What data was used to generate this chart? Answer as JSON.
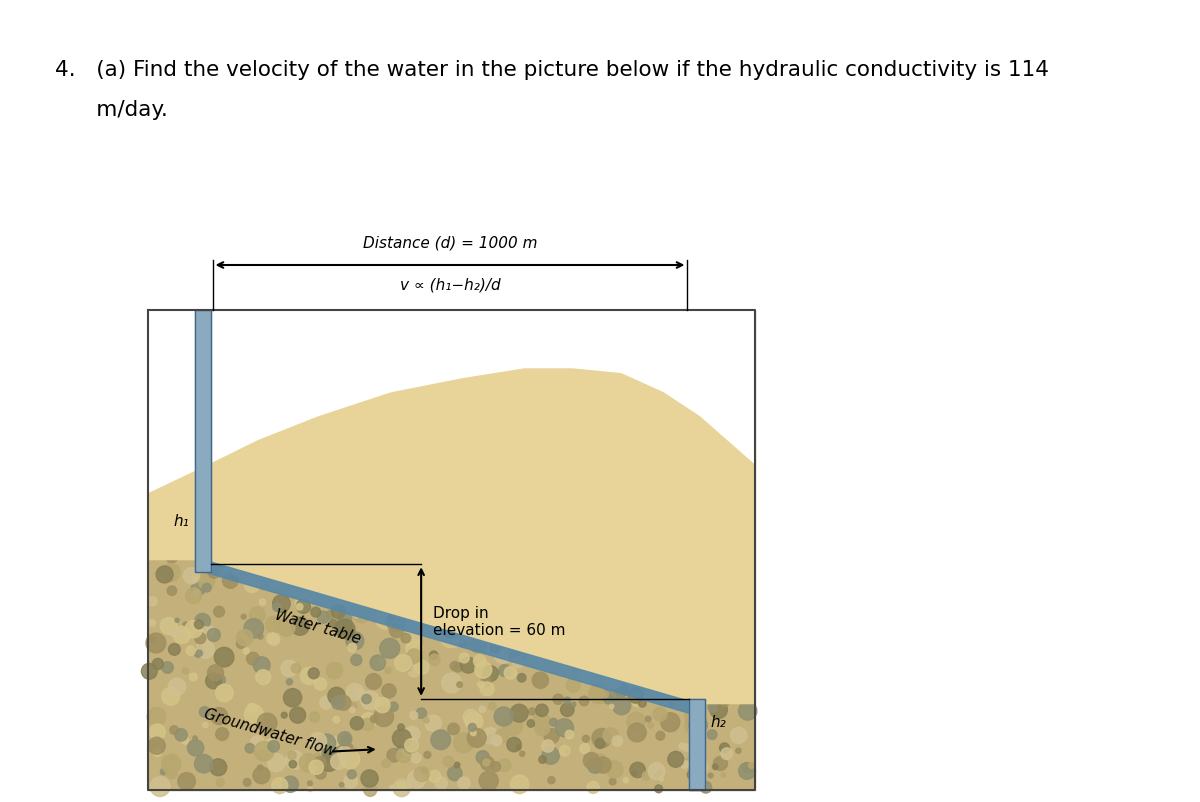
{
  "title_line1": "4.   (a) Find the velocity of the water in the picture below if the hydraulic conductivity is 114",
  "title_line2": "      m/day.",
  "title_fontsize": 15.5,
  "distance_label": "Distance (d) = 1000 m",
  "formula_label": "v ∝ (h₁−h₂)/d",
  "water_table_label": "Water table",
  "groundwater_label": "Groundwater flow",
  "drop_label": "Drop in\nelevation = 60 m",
  "h1_label": "h₁",
  "h2_label": "h₂",
  "bg_color": "#ffffff",
  "sand_color": "#e8d498",
  "gravel_color_base": "#c8b87a",
  "water_table_color": "#5888a8",
  "well_color": "#8aaabf",
  "well_edge_color": "#446688"
}
